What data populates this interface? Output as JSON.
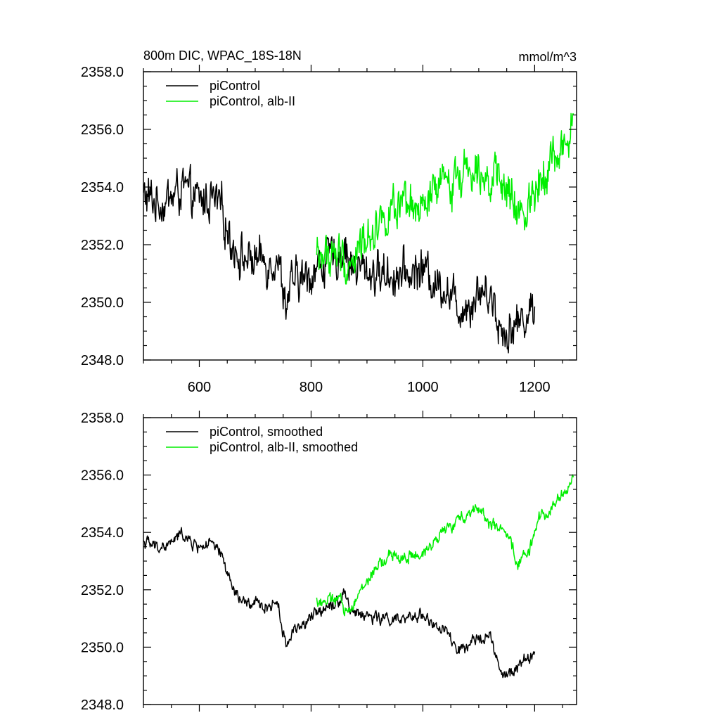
{
  "figure": {
    "title": "800m DIC, WPAC_18S-18N",
    "units": "mmol/m^3"
  },
  "colors": {
    "piControl": "#000000",
    "albII": "#00ee00"
  },
  "chart_data": [
    {
      "type": "line",
      "title": "800m DIC, WPAC_18S-18N",
      "units": "mmol/m^3",
      "xlim": [
        500,
        1275
      ],
      "ylim": [
        2348,
        2358
      ],
      "xticks": [
        600,
        800,
        1000,
        1200
      ],
      "xtick_labels": [
        "600",
        "800",
        "1000",
        "1200"
      ],
      "yticks": [
        2348,
        2350,
        2352,
        2354,
        2356,
        2358
      ],
      "ytick_labels": [
        "2348.0",
        "2350.0",
        "2352.0",
        "2354.0",
        "2356.0",
        "2358.0"
      ],
      "grid": false,
      "legend_position": "top-left",
      "series": [
        {
          "name": "piControl",
          "color": "#000000",
          "x": [
            500,
            520,
            540,
            560,
            570,
            580,
            600,
            620,
            640,
            660,
            680,
            700,
            720,
            740,
            755,
            770,
            790,
            810,
            830,
            850,
            860,
            870,
            880,
            900,
            920,
            940,
            960,
            980,
            1000,
            1020,
            1040,
            1060,
            1080,
            1100,
            1120,
            1140,
            1160,
            1180,
            1200
          ],
          "y": [
            2353.7,
            2353.5,
            2353.5,
            2353.8,
            2354.0,
            2353.7,
            2353.5,
            2353.6,
            2353.2,
            2352.0,
            2351.5,
            2351.5,
            2351.4,
            2351.6,
            2350.0,
            2350.7,
            2350.8,
            2351.2,
            2351.5,
            2351.6,
            2352.0,
            2351.3,
            2351.2,
            2351.1,
            2351.0,
            2351.0,
            2350.9,
            2351.0,
            2351.2,
            2350.7,
            2350.6,
            2349.9,
            2349.9,
            2350.4,
            2350.4,
            2349.0,
            2349.1,
            2349.5,
            2349.8
          ]
        },
        {
          "name": "piControl, alb-II",
          "color": "#00ee00",
          "x": [
            810,
            830,
            850,
            860,
            870,
            885,
            900,
            920,
            940,
            960,
            980,
            1000,
            1020,
            1040,
            1060,
            1080,
            1100,
            1120,
            1140,
            1160,
            1170,
            1190,
            1210,
            1230,
            1250,
            1260,
            1270
          ],
          "y": [
            2351.6,
            2351.6,
            2351.7,
            2351.2,
            2351.4,
            2351.8,
            2352.3,
            2352.8,
            2353.2,
            2353.1,
            2353.2,
            2353.1,
            2353.8,
            2354.1,
            2354.3,
            2354.7,
            2354.9,
            2354.3,
            2354.1,
            2353.5,
            2352.9,
            2353.4,
            2354.5,
            2354.9,
            2355.3,
            2355.6,
            2356.0
          ]
        }
      ]
    },
    {
      "type": "line",
      "xlim": [
        500,
        1275
      ],
      "ylim": [
        2348,
        2358
      ],
      "xticks": [
        600,
        800,
        1000,
        1200
      ],
      "yticks": [
        2348,
        2350,
        2352,
        2354,
        2356,
        2358
      ],
      "ytick_labels": [
        "2348.0",
        "2350.0",
        "2352.0",
        "2354.0",
        "2356.0",
        "2358.0"
      ],
      "grid": false,
      "legend_position": "top-left",
      "series": [
        {
          "name": "piControl, smoothed",
          "color": "#000000",
          "x": [
            500,
            520,
            540,
            560,
            570,
            580,
            600,
            620,
            640,
            660,
            680,
            700,
            720,
            740,
            755,
            770,
            790,
            810,
            830,
            850,
            860,
            870,
            880,
            900,
            920,
            940,
            960,
            980,
            1000,
            1020,
            1040,
            1060,
            1080,
            1100,
            1120,
            1140,
            1160,
            1180,
            1200
          ],
          "y": [
            2353.7,
            2353.5,
            2353.5,
            2353.8,
            2354.0,
            2353.7,
            2353.5,
            2353.6,
            2353.2,
            2352.0,
            2351.5,
            2351.5,
            2351.4,
            2351.6,
            2350.0,
            2350.7,
            2350.8,
            2351.2,
            2351.5,
            2351.6,
            2352.0,
            2351.3,
            2351.2,
            2351.1,
            2351.0,
            2351.0,
            2350.9,
            2351.0,
            2351.2,
            2350.7,
            2350.6,
            2349.9,
            2349.9,
            2350.4,
            2350.4,
            2349.0,
            2349.1,
            2349.5,
            2349.8
          ]
        },
        {
          "name": "piControl, alb-II, smoothed",
          "color": "#00ee00",
          "x": [
            810,
            830,
            850,
            860,
            870,
            885,
            900,
            920,
            940,
            960,
            980,
            1000,
            1020,
            1040,
            1060,
            1080,
            1100,
            1120,
            1140,
            1160,
            1170,
            1190,
            1210,
            1230,
            1250,
            1260,
            1270
          ],
          "y": [
            2351.6,
            2351.6,
            2351.7,
            2351.2,
            2351.4,
            2351.8,
            2352.3,
            2352.8,
            2353.2,
            2353.1,
            2353.2,
            2353.1,
            2353.8,
            2354.1,
            2354.3,
            2354.7,
            2354.9,
            2354.3,
            2354.1,
            2353.5,
            2352.9,
            2353.4,
            2354.5,
            2354.9,
            2355.3,
            2355.6,
            2356.0
          ]
        }
      ]
    }
  ]
}
